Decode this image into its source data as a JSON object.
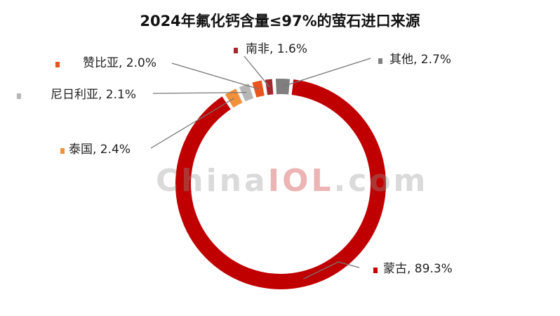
{
  "chart_data": {
    "type": "pie",
    "style": "donut",
    "title": "2024年氟化钙含量≤97%的萤石进口来源",
    "series": [
      {
        "name": "",
        "slices": [
          {
            "label": "蒙古",
            "value": 89.3,
            "value_label": "89.3%",
            "color": "#C00000"
          },
          {
            "label": "泰国",
            "value": 2.4,
            "value_label": "2.4%",
            "color": "#F4903A"
          },
          {
            "label": "尼日利亚",
            "value": 2.1,
            "value_label": "2.1%",
            "color": "#B7B7B7"
          },
          {
            "label": "赞比亚",
            "value": 2.0,
            "value_label": "2.0%",
            "color": "#E8551F"
          },
          {
            "label": "南非",
            "value": 1.6,
            "value_label": "1.6%",
            "color": "#A5272C"
          },
          {
            "label": "其他",
            "value": 2.7,
            "value_label": "2.7%",
            "color": "#7F7F7F"
          }
        ]
      }
    ]
  },
  "watermark": {
    "part1": "China",
    "part2": "IOL",
    "part3": ".com"
  }
}
